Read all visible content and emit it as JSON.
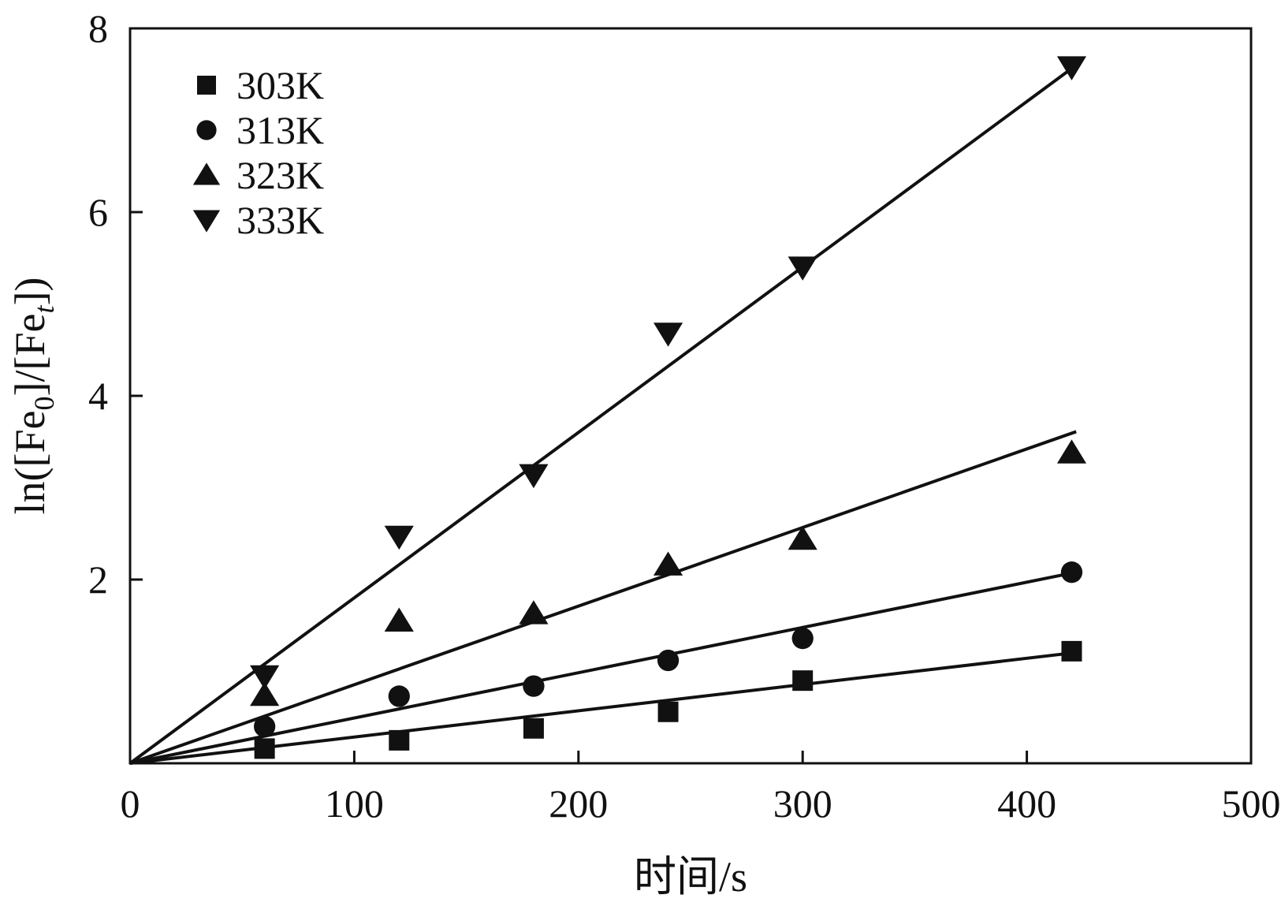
{
  "chart_data": {
    "type": "scatter",
    "xlabel": "时间/s",
    "ylabel": {
      "prefix": "ln([Fe",
      "sub1": "0",
      "middle": "]/[Fe",
      "sub2": "t",
      "suffix": "])"
    },
    "xlim": [
      0,
      500
    ],
    "ylim": [
      0,
      8
    ],
    "x_ticks": [
      "0",
      "100",
      "200",
      "300",
      "400",
      "500"
    ],
    "y_ticks": [
      "2",
      "4",
      "6",
      "8"
    ],
    "grid": false,
    "legend_position": "top-left",
    "colors": {
      "marker": "#111111",
      "line": "#111111",
      "axis": "#111111"
    },
    "series": [
      {
        "name": "303K",
        "marker": "square",
        "points": [
          [
            60,
            0.16
          ],
          [
            120,
            0.25
          ],
          [
            180,
            0.38
          ],
          [
            240,
            0.56
          ],
          [
            300,
            0.9
          ],
          [
            420,
            1.22
          ]
        ],
        "fit": [
          [
            0,
            0
          ],
          [
            420,
            1.2
          ]
        ]
      },
      {
        "name": "313K",
        "marker": "circle",
        "points": [
          [
            60,
            0.4
          ],
          [
            120,
            0.73
          ],
          [
            180,
            0.84
          ],
          [
            240,
            1.12
          ],
          [
            300,
            1.36
          ],
          [
            420,
            2.08
          ]
        ],
        "fit": [
          [
            0,
            0
          ],
          [
            420,
            2.07
          ]
        ]
      },
      {
        "name": "323K",
        "marker": "triangle-up",
        "points": [
          [
            60,
            0.74
          ],
          [
            120,
            1.55
          ],
          [
            180,
            1.63
          ],
          [
            240,
            2.16
          ],
          [
            300,
            2.44
          ],
          [
            420,
            3.38
          ]
        ],
        "fit": [
          [
            0,
            0
          ],
          [
            422,
            3.61
          ]
        ]
      },
      {
        "name": "333K",
        "marker": "triangle-down",
        "points": [
          [
            60,
            0.95
          ],
          [
            120,
            2.47
          ],
          [
            180,
            3.14
          ],
          [
            240,
            4.68
          ],
          [
            300,
            5.4
          ],
          [
            420,
            7.58
          ]
        ],
        "fit": [
          [
            0,
            0
          ],
          [
            422,
            7.6
          ]
        ]
      }
    ]
  }
}
